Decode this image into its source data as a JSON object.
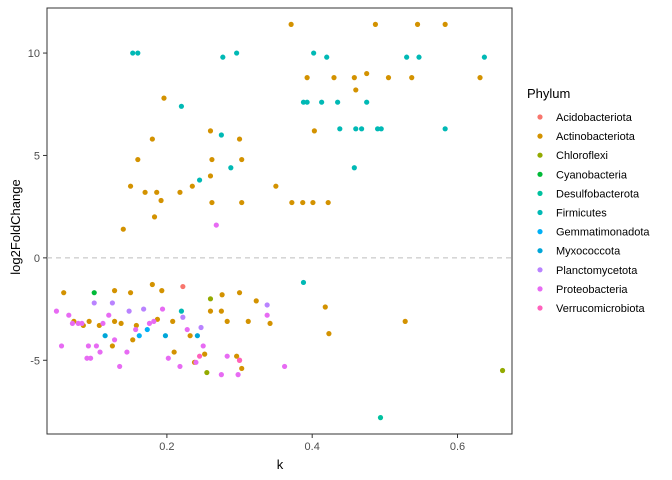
{
  "chart_data": {
    "type": "scatter",
    "xlabel": "k",
    "ylabel": "log2FoldChange",
    "xlim": [
      0.035,
      0.675
    ],
    "ylim": [
      -8.6,
      12.2
    ],
    "xticks": [
      0.2,
      0.4,
      0.6
    ],
    "xtick_labels": [
      "0.2",
      "0.4",
      "0.6"
    ],
    "yticks": [
      -5,
      0,
      5,
      10
    ],
    "ytick_labels": [
      "-5",
      "0",
      "5",
      "10"
    ],
    "reference_line": {
      "y": 0,
      "style": "dashed"
    },
    "grid": false,
    "legend": {
      "title": "Phylum",
      "position": "right"
    },
    "series": [
      {
        "name": "Acidobacteriota",
        "color": "#F8766D",
        "points": [
          [
            0.222,
            -1.4
          ],
          [
            0.3,
            -5.0
          ]
        ]
      },
      {
        "name": "Actinobacteriota",
        "color": "#D39200",
        "points": [
          [
            0.371,
            11.4
          ],
          [
            0.487,
            11.4
          ],
          [
            0.545,
            11.4
          ],
          [
            0.583,
            11.4
          ],
          [
            0.393,
            8.8
          ],
          [
            0.43,
            8.8
          ],
          [
            0.458,
            8.8
          ],
          [
            0.475,
            9.0
          ],
          [
            0.505,
            8.8
          ],
          [
            0.537,
            8.8
          ],
          [
            0.631,
            8.8
          ],
          [
            0.46,
            8.2
          ],
          [
            0.196,
            7.8
          ],
          [
            0.26,
            6.2
          ],
          [
            0.3,
            5.8
          ],
          [
            0.18,
            5.8
          ],
          [
            0.403,
            6.2
          ],
          [
            0.16,
            4.8
          ],
          [
            0.262,
            4.8
          ],
          [
            0.303,
            4.8
          ],
          [
            0.26,
            4.0
          ],
          [
            0.15,
            3.5
          ],
          [
            0.235,
            3.5
          ],
          [
            0.35,
            3.5
          ],
          [
            0.17,
            3.2
          ],
          [
            0.186,
            3.2
          ],
          [
            0.218,
            3.2
          ],
          [
            0.192,
            2.8
          ],
          [
            0.262,
            2.7
          ],
          [
            0.303,
            2.7
          ],
          [
            0.372,
            2.7
          ],
          [
            0.387,
            2.7
          ],
          [
            0.401,
            2.7
          ],
          [
            0.422,
            2.7
          ],
          [
            0.183,
            2.0
          ],
          [
            0.14,
            1.4
          ],
          [
            0.058,
            -1.7
          ],
          [
            0.128,
            -1.6
          ],
          [
            0.15,
            -1.7
          ],
          [
            0.18,
            -1.3
          ],
          [
            0.193,
            -1.6
          ],
          [
            0.276,
            -1.8
          ],
          [
            0.3,
            -1.7
          ],
          [
            0.072,
            -3.1
          ],
          [
            0.085,
            -3.3
          ],
          [
            0.093,
            -3.1
          ],
          [
            0.107,
            -3.3
          ],
          [
            0.128,
            -3.1
          ],
          [
            0.137,
            -3.2
          ],
          [
            0.158,
            -3.3
          ],
          [
            0.187,
            -3.0
          ],
          [
            0.208,
            -3.1
          ],
          [
            0.232,
            -3.8
          ],
          [
            0.26,
            -2.6
          ],
          [
            0.275,
            -2.6
          ],
          [
            0.283,
            -3.1
          ],
          [
            0.312,
            -3.1
          ],
          [
            0.323,
            -2.1
          ],
          [
            0.342,
            -3.2
          ],
          [
            0.418,
            -2.4
          ],
          [
            0.423,
            -3.7
          ],
          [
            0.528,
            -3.1
          ],
          [
            0.125,
            -4.3
          ],
          [
            0.153,
            -4.0
          ],
          [
            0.21,
            -4.6
          ],
          [
            0.238,
            -5.1
          ],
          [
            0.252,
            -4.7
          ],
          [
            0.296,
            -4.8
          ],
          [
            0.303,
            -5.4
          ]
        ]
      },
      {
        "name": "Chloroflexi",
        "color": "#93AA00",
        "points": [
          [
            0.662,
            -5.5
          ],
          [
            0.255,
            -5.6
          ],
          [
            0.26,
            -2.0
          ]
        ]
      },
      {
        "name": "Cyanobacteria",
        "color": "#00BA38",
        "points": [
          [
            0.1,
            -1.7
          ]
        ]
      },
      {
        "name": "Desulfobacterota",
        "color": "#00C19F",
        "points": [
          [
            0.494,
            -7.8
          ]
        ]
      },
      {
        "name": "Firmicutes",
        "color": "#00B9B5",
        "points": [
          [
            0.153,
            10.0
          ],
          [
            0.16,
            10.0
          ],
          [
            0.296,
            10.0
          ],
          [
            0.277,
            9.8
          ],
          [
            0.402,
            10.0
          ],
          [
            0.42,
            9.8
          ],
          [
            0.53,
            9.8
          ],
          [
            0.547,
            9.8
          ],
          [
            0.637,
            9.8
          ],
          [
            0.388,
            7.6
          ],
          [
            0.393,
            7.6
          ],
          [
            0.413,
            7.6
          ],
          [
            0.435,
            7.6
          ],
          [
            0.475,
            7.6
          ],
          [
            0.22,
            7.4
          ],
          [
            0.438,
            6.3
          ],
          [
            0.46,
            6.3
          ],
          [
            0.468,
            6.3
          ],
          [
            0.49,
            6.3
          ],
          [
            0.495,
            6.3
          ],
          [
            0.583,
            6.3
          ],
          [
            0.275,
            6.0
          ],
          [
            0.288,
            4.4
          ],
          [
            0.458,
            4.4
          ],
          [
            0.245,
            3.8
          ],
          [
            0.388,
            -1.2
          ],
          [
            0.22,
            -2.6
          ]
        ]
      },
      {
        "name": "Gemmatimonadota",
        "color": "#00B0F6",
        "points": [
          [
            0.162,
            -3.8
          ],
          [
            0.173,
            -3.5
          ]
        ]
      },
      {
        "name": "Myxococcota",
        "color": "#00A6D8",
        "points": [
          [
            0.115,
            -3.8
          ],
          [
            0.198,
            -3.8
          ],
          [
            0.242,
            -3.8
          ]
        ]
      },
      {
        "name": "Planctomycetota",
        "color": "#B983FF",
        "points": [
          [
            0.1,
            -2.2
          ],
          [
            0.125,
            -2.2
          ],
          [
            0.148,
            -2.6
          ],
          [
            0.168,
            -2.5
          ],
          [
            0.222,
            -2.9
          ],
          [
            0.247,
            -3.4
          ],
          [
            0.338,
            -2.3
          ]
        ]
      },
      {
        "name": "Proteobacteria",
        "color": "#E76BF3",
        "points": [
          [
            0.048,
            -2.6
          ],
          [
            0.055,
            -4.3
          ],
          [
            0.065,
            -2.8
          ],
          [
            0.07,
            -3.2
          ],
          [
            0.078,
            -3.2
          ],
          [
            0.083,
            -3.2
          ],
          [
            0.09,
            -4.9
          ],
          [
            0.092,
            -4.3
          ],
          [
            0.095,
            -4.9
          ],
          [
            0.103,
            -4.3
          ],
          [
            0.108,
            -4.6
          ],
          [
            0.112,
            -3.2
          ],
          [
            0.12,
            -2.8
          ],
          [
            0.128,
            -4.0
          ],
          [
            0.135,
            -5.3
          ],
          [
            0.145,
            -4.6
          ],
          [
            0.157,
            -3.5
          ],
          [
            0.176,
            -3.2
          ],
          [
            0.182,
            -3.1
          ],
          [
            0.194,
            -2.5
          ],
          [
            0.202,
            -4.9
          ],
          [
            0.218,
            -5.3
          ],
          [
            0.228,
            -3.5
          ],
          [
            0.24,
            -5.1
          ],
          [
            0.25,
            -4.3
          ],
          [
            0.268,
            1.6
          ],
          [
            0.275,
            -5.7
          ],
          [
            0.283,
            -4.8
          ],
          [
            0.298,
            -5.7
          ],
          [
            0.338,
            -2.8
          ],
          [
            0.362,
            -5.3
          ]
        ]
      },
      {
        "name": "Verrucomicrobiota",
        "color": "#FF62BC",
        "points": [
          [
            0.245,
            -4.8
          ],
          [
            0.3,
            -5.0
          ]
        ]
      }
    ]
  }
}
